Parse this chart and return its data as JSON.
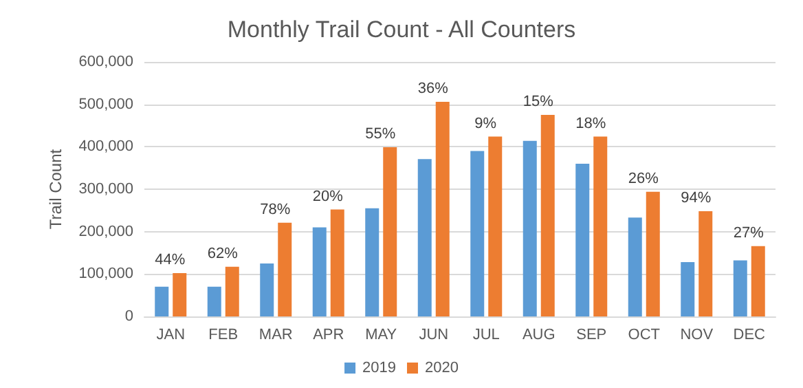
{
  "chart_data": {
    "type": "bar",
    "title": "Monthly Trail Count - All Counters",
    "ylabel": "Trail Count",
    "categories": [
      "JAN",
      "FEB",
      "MAR",
      "APR",
      "MAY",
      "JUN",
      "JUL",
      "AUG",
      "SEP",
      "OCT",
      "NOV",
      "DEC"
    ],
    "series": [
      {
        "name": "2019",
        "color": "#5b9bd5",
        "values": [
          70000,
          70000,
          125000,
          210000,
          255000,
          371000,
          390000,
          414000,
          360000,
          233000,
          128000,
          132000
        ]
      },
      {
        "name": "2020",
        "color": "#ed7d31",
        "values": [
          102000,
          117000,
          221000,
          252000,
          399000,
          506000,
          424000,
          475000,
          424000,
          294000,
          248000,
          166000
        ]
      }
    ],
    "annotations": [
      {
        "text": "44%",
        "x": "JAN",
        "y": 102000
      },
      {
        "text": "62%",
        "x": "FEB",
        "y": 117000
      },
      {
        "text": "78%",
        "x": "MAR",
        "y": 221000
      },
      {
        "text": "20%",
        "x": "APR",
        "y": 252000
      },
      {
        "text": "55%",
        "x": "MAY",
        "y": 399000
      },
      {
        "text": "36%",
        "x": "JUN",
        "y": 506000
      },
      {
        "text": "9%",
        "x": "JUL",
        "y": 424000
      },
      {
        "text": "15%",
        "x": "AUG",
        "y": 475000
      },
      {
        "text": "18%",
        "x": "SEP",
        "y": 424000
      },
      {
        "text": "26%",
        "x": "OCT",
        "y": 294000
      },
      {
        "text": "94%",
        "x": "NOV",
        "y": 248000
      },
      {
        "text": "27%",
        "x": "DEC",
        "y": 166000
      }
    ],
    "ylim": [
      0,
      600000
    ],
    "yticks": [
      0,
      {
        "value": 100000,
        "label": "100,000"
      },
      {
        "value": 200000,
        "label": "200,000"
      },
      {
        "value": 300000,
        "label": "300,000"
      },
      {
        "value": 400000,
        "label": "400,000"
      },
      {
        "value": 500000,
        "label": "500,000"
      },
      {
        "value": 600000,
        "label": "600,000"
      }
    ],
    "grid": "y",
    "legend": "bottom"
  }
}
